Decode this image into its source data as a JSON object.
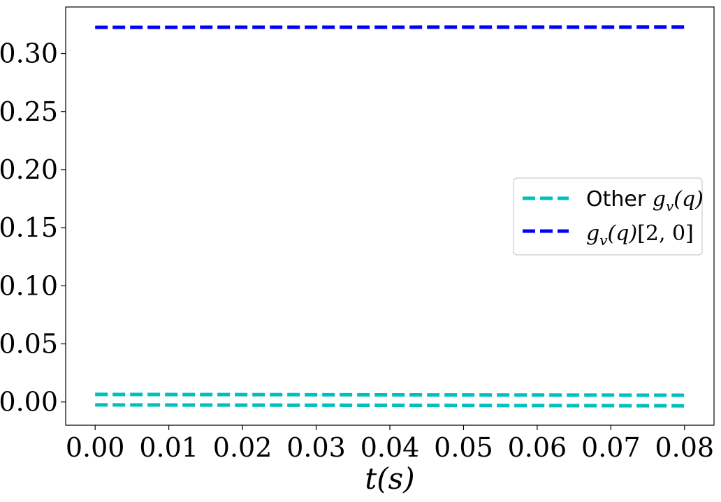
{
  "chart_data": {
    "type": "line",
    "title": "",
    "xlabel": "t(s)",
    "ylabel": "",
    "xlim": [
      -0.004,
      0.084
    ],
    "ylim": [
      -0.02,
      0.34
    ],
    "xticks": [
      0.0,
      0.01,
      0.02,
      0.03,
      0.04,
      0.05,
      0.06,
      0.07,
      0.08
    ],
    "xtick_labels": [
      "0.00",
      "0.01",
      "0.02",
      "0.03",
      "0.04",
      "0.05",
      "0.06",
      "0.07",
      "0.08"
    ],
    "yticks": [
      0.0,
      0.05,
      0.1,
      0.15,
      0.2,
      0.25,
      0.3
    ],
    "ytick_labels": [
      "0.00",
      "0.05",
      "0.10",
      "0.15",
      "0.20",
      "0.25",
      "0.30"
    ],
    "grid": false,
    "legend_position": "center-right",
    "series": [
      {
        "name": "Other g_v(q)",
        "color": "#00bfbf",
        "style": "dashed",
        "x": [
          0.0,
          0.08
        ],
        "y": [
          0.0065,
          0.0058
        ]
      },
      {
        "name": "",
        "color": "#00bfbf",
        "style": "dashed",
        "x": [
          0.0,
          0.08
        ],
        "y": [
          -0.0025,
          -0.0033
        ]
      },
      {
        "name": "g_v(q)[2,0]",
        "color": "#0000ff",
        "style": "dashed",
        "x": [
          0.0,
          0.08
        ],
        "y": [
          0.3225,
          0.3227
        ]
      }
    ],
    "legend": [
      {
        "prefix": "Other ",
        "math_base": "g",
        "math_sub": "v",
        "math_rest": "(q)",
        "color": "#00bfbf"
      },
      {
        "prefix": "",
        "math_base": "g",
        "math_sub": "v",
        "math_rest": "(q)",
        "math_tail": "[2, 0]",
        "color": "#0000ff"
      }
    ]
  }
}
